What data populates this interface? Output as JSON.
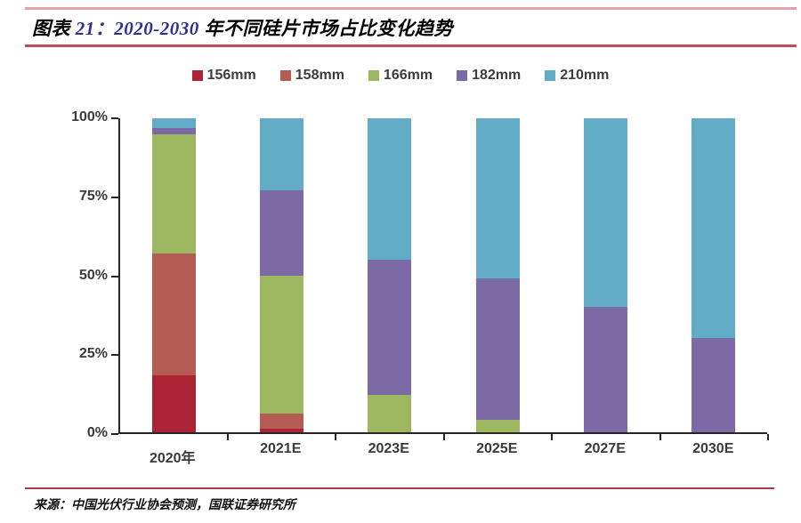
{
  "header": {
    "title_prefix": "图表 ",
    "title_number": "21：2020-2030 ",
    "title_suffix": "年不同硅片市场占比变化趋势"
  },
  "footer": {
    "source": "来源：中国光伏行业协会预测，国联证券研究所"
  },
  "colors": {
    "top_rule": "#e3a2ad",
    "title_rule": "#c44a57",
    "footer_rule": "#a83a46",
    "title_number_blue": "#2e3192",
    "axis": "#262626"
  },
  "chart_data": {
    "type": "bar",
    "subtype": "stacked-percent",
    "title": "2020-2030 年不同硅片市场占比变化趋势",
    "categories": [
      "2020年",
      "2021E",
      "2023E",
      "2025E",
      "2027E",
      "2030E"
    ],
    "series": [
      {
        "name": "156mm",
        "color": "#ab2335",
        "values": [
          18,
          1,
          0,
          0,
          0,
          0
        ]
      },
      {
        "name": "158mm",
        "color": "#b45b54",
        "values": [
          39,
          5,
          0,
          0,
          0,
          0
        ]
      },
      {
        "name": "166mm",
        "color": "#9cb75f",
        "values": [
          38,
          44,
          12,
          4,
          0,
          0
        ]
      },
      {
        "name": "182mm",
        "color": "#7c6aa6",
        "values": [
          2,
          27,
          43,
          45,
          40,
          30
        ]
      },
      {
        "name": "210mm",
        "color": "#62acc7",
        "values": [
          3,
          23,
          45,
          51,
          60,
          70
        ]
      }
    ],
    "y_ticks": [
      {
        "label": "100%",
        "value": 100
      },
      {
        "label": "75%",
        "value": 75
      },
      {
        "label": "50%",
        "value": 50
      },
      {
        "label": "25%",
        "value": 25
      },
      {
        "label": "0%",
        "value": 0
      }
    ],
    "ylim": [
      0,
      100
    ],
    "xlabel": "",
    "ylabel": "",
    "legend_position": "top-center",
    "grid": false
  }
}
